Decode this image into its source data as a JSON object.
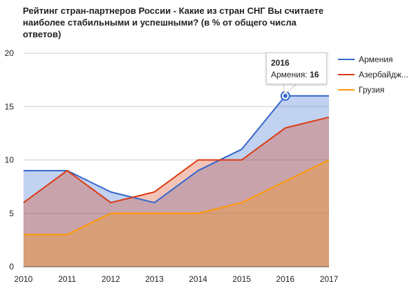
{
  "chart_data": {
    "type": "area",
    "title": "Рейтинг стран-партнеров России - Какие из стран СНГ Вы считаете наиболее стабильными и успешными? (в % от общего числа ответов)",
    "x": [
      "2010",
      "2011",
      "2012",
      "2013",
      "2014",
      "2015",
      "2016",
      "2017"
    ],
    "ylim": [
      0,
      20
    ],
    "yticks": [
      "0",
      "5",
      "10",
      "15",
      "20"
    ],
    "grid": true,
    "legend_position": "right",
    "series": [
      {
        "name": "Армения",
        "color": "#3366cc",
        "fill": "#aec2ec",
        "values": [
          9,
          9,
          7,
          6,
          9,
          11,
          16,
          16
        ]
      },
      {
        "name": "Азербайдж...",
        "color": "#dc3912",
        "fill": "#f0a592",
        "values": [
          6,
          9,
          6,
          7,
          10,
          10,
          13,
          14
        ]
      },
      {
        "name": "Грузия",
        "color": "#ff9900",
        "fill": "#d9a070",
        "values": [
          3,
          3,
          5,
          5,
          5,
          6,
          8,
          10
        ]
      }
    ],
    "tooltip": {
      "title": "2016",
      "label": "Армения:",
      "value": "16"
    }
  }
}
